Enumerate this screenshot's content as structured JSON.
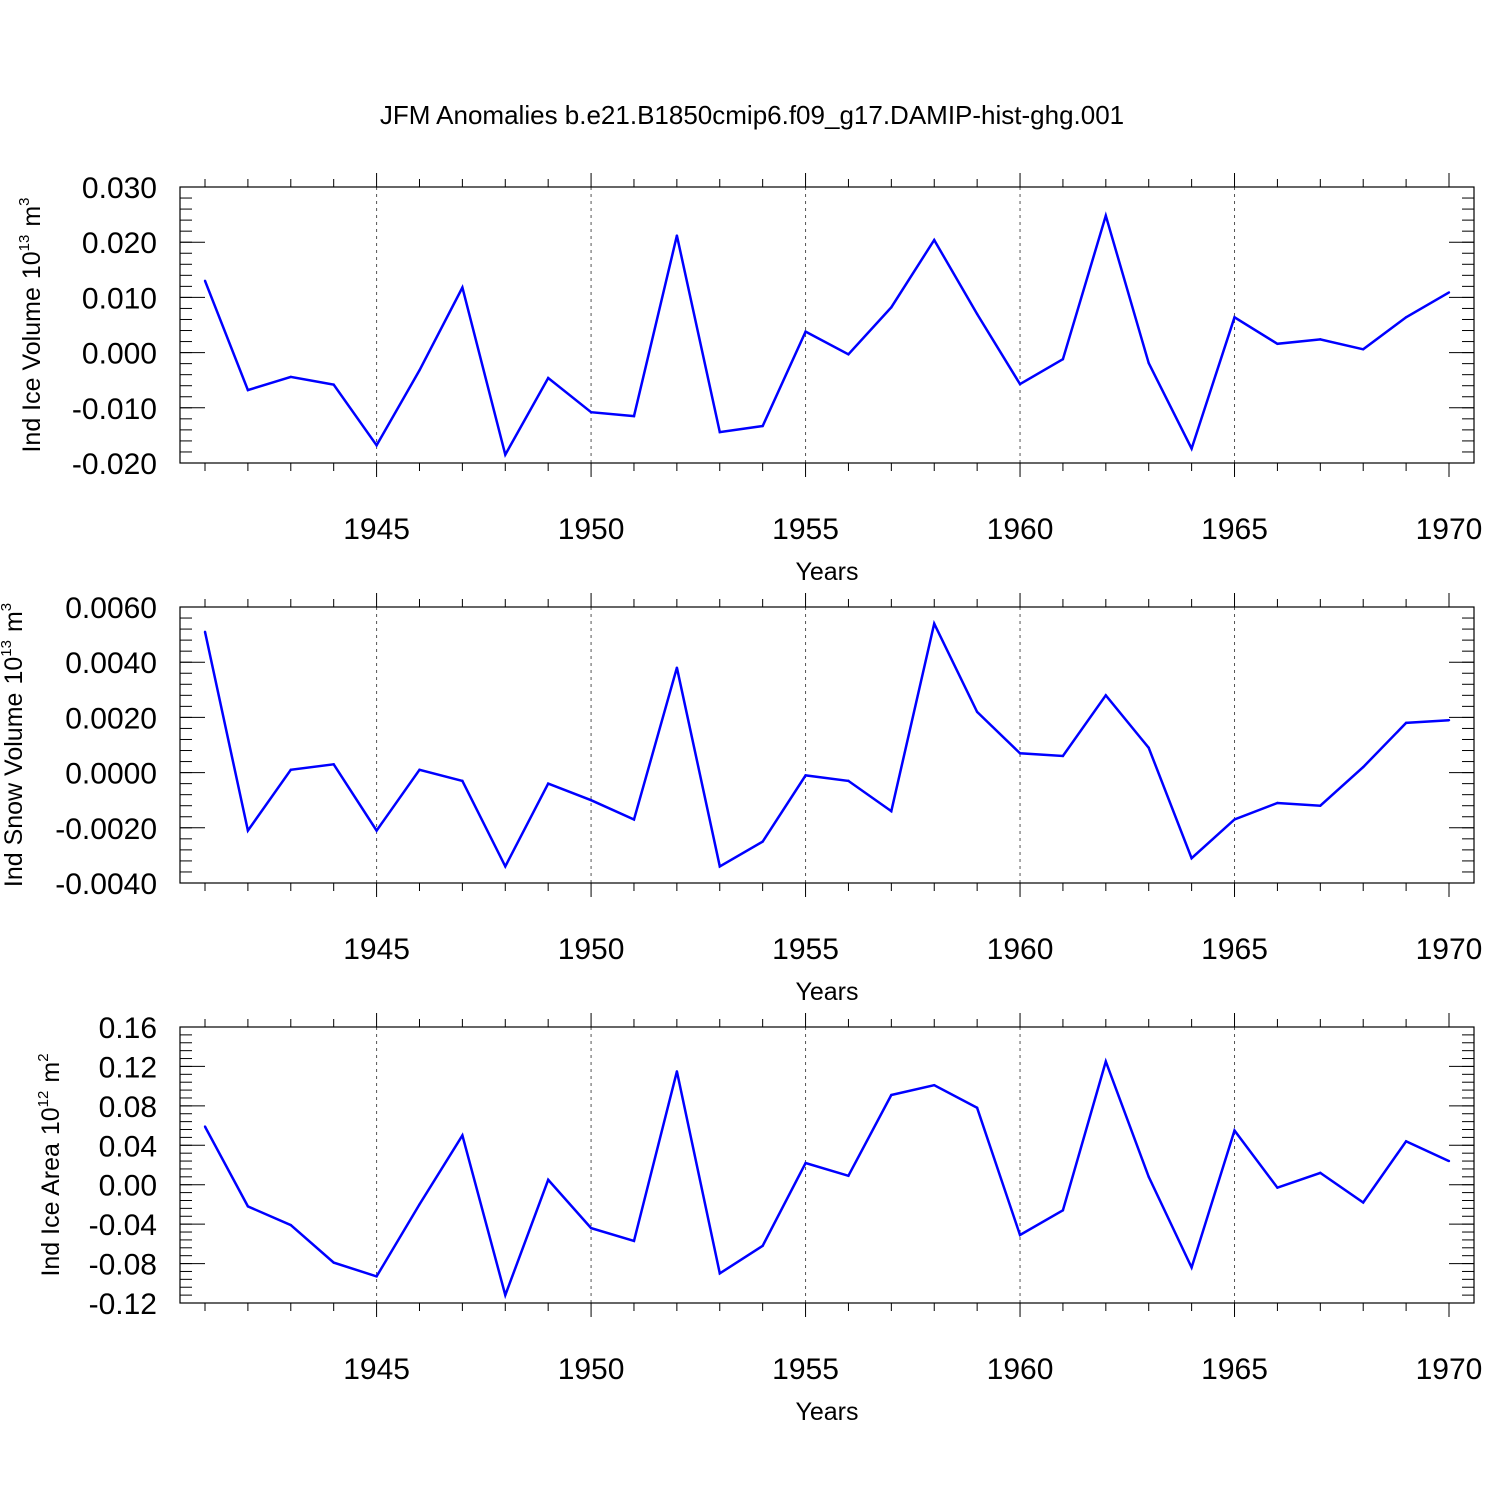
{
  "title": "JFM Anomalies b.e21.B1850cmip6.f09_g17.DAMIP-hist-ghg.001",
  "colors": {
    "line": "#0000ff",
    "axis": "#000000",
    "grid": "#555555"
  },
  "chart_data": [
    {
      "type": "line",
      "ylabel": "Ind Ice Volume",
      "ylabel_unit_base": "10",
      "ylabel_unit_exp": "13",
      "ylabel_unit_symbol": "m",
      "ylabel_unit_symbol_exp": "3",
      "xlabel": "Years",
      "xlim": [
        1941,
        1970
      ],
      "ylim": [
        -0.02,
        0.03
      ],
      "y_ticks": [
        "0.030",
        "0.020",
        "0.010",
        "0.000",
        "-0.010",
        "-0.020"
      ],
      "y_tick_values": [
        0.03,
        0.02,
        0.01,
        0.0,
        -0.01,
        -0.02
      ],
      "y_minor_step": 0.002,
      "x_ticks": [
        "1945",
        "1950",
        "1955",
        "1960",
        "1965",
        "1970"
      ],
      "x_tick_values": [
        1945,
        1950,
        1955,
        1960,
        1965,
        1970
      ],
      "grid": "x-major-dashed",
      "x": [
        1941,
        1942,
        1943,
        1944,
        1945,
        1946,
        1947,
        1948,
        1949,
        1950,
        1951,
        1952,
        1953,
        1954,
        1955,
        1956,
        1957,
        1958,
        1959,
        1960,
        1961,
        1962,
        1963,
        1964,
        1965,
        1966,
        1967,
        1968,
        1969,
        1970
      ],
      "series": [
        {
          "values": [
            0.013,
            -0.0068,
            -0.0044,
            -0.0058,
            -0.0168,
            -0.0032,
            0.0118,
            -0.0185,
            -0.0046,
            -0.0108,
            -0.0115,
            0.0212,
            -0.0144,
            -0.0133,
            0.0038,
            -0.0003,
            0.0082,
            0.0204,
            0.007,
            -0.0057,
            -0.0012,
            0.0248,
            -0.0019,
            -0.0174,
            0.0064,
            0.0016,
            0.0024,
            0.0006,
            0.0064,
            0.0109
          ]
        }
      ]
    },
    {
      "type": "line",
      "ylabel": "Ind Snow Volume",
      "ylabel_unit_base": "10",
      "ylabel_unit_exp": "13",
      "ylabel_unit_symbol": "m",
      "ylabel_unit_symbol_exp": "3",
      "xlabel": "Years",
      "xlim": [
        1941,
        1970
      ],
      "ylim": [
        -0.004,
        0.006
      ],
      "y_ticks": [
        "0.0060",
        "0.0040",
        "0.0020",
        "0.0000",
        "-0.0020",
        "-0.0040"
      ],
      "y_tick_values": [
        0.006,
        0.004,
        0.002,
        0.0,
        -0.002,
        -0.004
      ],
      "y_minor_step": 0.0004,
      "x_ticks": [
        "1945",
        "1950",
        "1955",
        "1960",
        "1965",
        "1970"
      ],
      "x_tick_values": [
        1945,
        1950,
        1955,
        1960,
        1965,
        1970
      ],
      "grid": "x-major-dashed",
      "x": [
        1941,
        1942,
        1943,
        1944,
        1945,
        1946,
        1947,
        1948,
        1949,
        1950,
        1951,
        1952,
        1953,
        1954,
        1955,
        1956,
        1957,
        1958,
        1959,
        1960,
        1961,
        1962,
        1963,
        1964,
        1965,
        1966,
        1967,
        1968,
        1969,
        1970
      ],
      "series": [
        {
          "values": [
            0.0051,
            -0.0021,
            0.0001,
            0.0003,
            -0.0021,
            0.0001,
            -0.0003,
            -0.0034,
            -0.0004,
            -0.001,
            -0.0017,
            0.0038,
            -0.0034,
            -0.0025,
            -0.0001,
            -0.0003,
            -0.0014,
            0.0054,
            0.0022,
            0.0007,
            0.0006,
            0.0028,
            0.0009,
            -0.0031,
            -0.0017,
            -0.0011,
            -0.0012,
            0.0002,
            0.0018,
            0.0019
          ]
        }
      ]
    },
    {
      "type": "line",
      "ylabel": "Ind Ice Area",
      "ylabel_unit_base": "10",
      "ylabel_unit_exp": "12",
      "ylabel_unit_symbol": "m",
      "ylabel_unit_symbol_exp": "2",
      "xlabel": "Years",
      "xlim": [
        1941,
        1970
      ],
      "ylim": [
        -0.12,
        0.16
      ],
      "y_ticks": [
        "0.16",
        "0.12",
        "0.08",
        "0.04",
        "0.00",
        "-0.04",
        "-0.08",
        "-0.12"
      ],
      "y_tick_values": [
        0.16,
        0.12,
        0.08,
        0.04,
        0.0,
        -0.04,
        -0.08,
        -0.12
      ],
      "y_minor_step": 0.008,
      "x_ticks": [
        "1945",
        "1950",
        "1955",
        "1960",
        "1965",
        "1970"
      ],
      "x_tick_values": [
        1945,
        1950,
        1955,
        1960,
        1965,
        1970
      ],
      "grid": "x-major-dashed",
      "x": [
        1941,
        1942,
        1943,
        1944,
        1945,
        1946,
        1947,
        1948,
        1949,
        1950,
        1951,
        1952,
        1953,
        1954,
        1955,
        1956,
        1957,
        1958,
        1959,
        1960,
        1961,
        1962,
        1963,
        1964,
        1965,
        1966,
        1967,
        1968,
        1969,
        1970
      ],
      "series": [
        {
          "values": [
            0.059,
            -0.022,
            -0.041,
            -0.079,
            -0.093,
            -0.02,
            0.05,
            -0.112,
            0.005,
            -0.044,
            -0.057,
            0.115,
            -0.09,
            -0.062,
            0.022,
            0.009,
            0.091,
            0.101,
            0.078,
            -0.051,
            -0.026,
            0.125,
            0.008,
            -0.084,
            0.055,
            -0.003,
            0.012,
            -0.018,
            0.044,
            0.024
          ]
        }
      ]
    }
  ]
}
